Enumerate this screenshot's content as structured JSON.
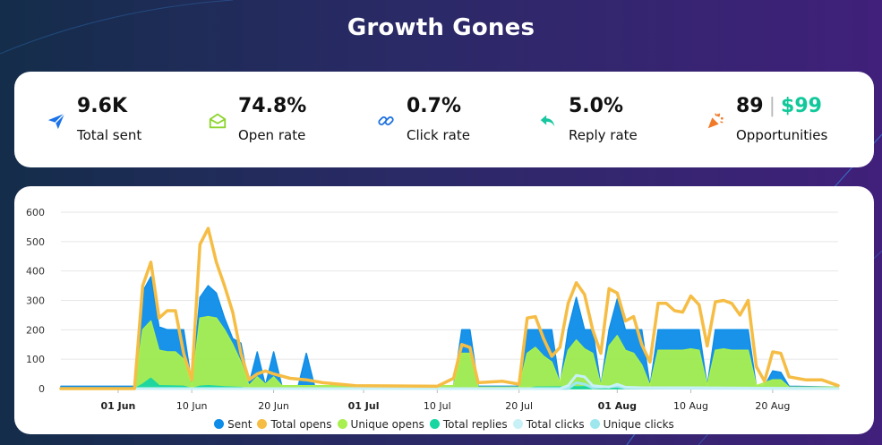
{
  "title": "Growth Gones",
  "stats": [
    {
      "icon": "paper-plane-icon",
      "value": "9.6K",
      "label": "Total sent",
      "color": "#1a73e8"
    },
    {
      "icon": "envelope-open-icon",
      "value": "74.8%",
      "label": "Open rate",
      "color": "#8cd42b"
    },
    {
      "icon": "link-icon",
      "value": "0.7%",
      "label": "Click rate",
      "color": "#1a6fe0"
    },
    {
      "icon": "reply-icon",
      "value": "5.0%",
      "label": "Reply rate",
      "color": "#18c6a0"
    },
    {
      "icon": "party-popper-icon",
      "value": "89",
      "separator": "|",
      "money": "$99",
      "label": "Opportunities",
      "color": "#f07a28"
    }
  ],
  "chart_data": {
    "type": "area",
    "title": "",
    "xlabel": "",
    "ylabel": "",
    "ylim": [
      0,
      600
    ],
    "yticks": [
      "0",
      "100",
      "200",
      "300",
      "400",
      "500",
      "600"
    ],
    "grid": true,
    "legend_position": "bottom",
    "x_start": "2024-05-25",
    "x_end": "2024-08-28",
    "xticks": [
      {
        "label": "01 Jun",
        "date": "2024-06-01",
        "bold": true
      },
      {
        "label": "10 Jun",
        "date": "2024-06-10",
        "bold": false
      },
      {
        "label": "20 Jun",
        "date": "2024-06-20",
        "bold": false
      },
      {
        "label": "01 Jul",
        "date": "2024-07-01",
        "bold": true
      },
      {
        "label": "10 Jul",
        "date": "2024-07-10",
        "bold": false
      },
      {
        "label": "20 Jul",
        "date": "2024-07-20",
        "bold": false
      },
      {
        "label": "01 Aug",
        "date": "2024-08-01",
        "bold": true
      },
      {
        "label": "10 Aug",
        "date": "2024-08-10",
        "bold": false
      },
      {
        "label": "20 Aug",
        "date": "2024-08-20",
        "bold": false
      }
    ],
    "series": [
      {
        "name": "Sent",
        "color": "#0d8de8",
        "kind": "area",
        "points": [
          [
            "2024-05-25",
            8
          ],
          [
            "2024-06-03",
            8
          ],
          [
            "2024-06-04",
            330
          ],
          [
            "2024-06-05",
            380
          ],
          [
            "2024-06-06",
            210
          ],
          [
            "2024-06-07",
            200
          ],
          [
            "2024-06-08",
            200
          ],
          [
            "2024-06-09",
            200
          ],
          [
            "2024-06-10",
            15
          ],
          [
            "2024-06-11",
            310
          ],
          [
            "2024-06-12",
            350
          ],
          [
            "2024-06-13",
            325
          ],
          [
            "2024-06-14",
            240
          ],
          [
            "2024-06-15",
            170
          ],
          [
            "2024-06-16",
            155
          ],
          [
            "2024-06-17",
            15
          ],
          [
            "2024-06-18",
            125
          ],
          [
            "2024-06-19",
            10
          ],
          [
            "2024-06-20",
            125
          ],
          [
            "2024-06-21",
            10
          ],
          [
            "2024-06-23",
            8
          ],
          [
            "2024-06-24",
            120
          ],
          [
            "2024-06-25",
            10
          ],
          [
            "2024-07-12",
            8
          ],
          [
            "2024-07-13",
            200
          ],
          [
            "2024-07-14",
            200
          ],
          [
            "2024-07-15",
            8
          ],
          [
            "2024-07-20",
            8
          ],
          [
            "2024-07-21",
            200
          ],
          [
            "2024-07-22",
            200
          ],
          [
            "2024-07-23",
            200
          ],
          [
            "2024-07-24",
            200
          ],
          [
            "2024-07-25",
            8
          ],
          [
            "2024-07-26",
            200
          ],
          [
            "2024-07-27",
            310
          ],
          [
            "2024-07-28",
            200
          ],
          [
            "2024-07-29",
            200
          ],
          [
            "2024-07-30",
            8
          ],
          [
            "2024-07-31",
            200
          ],
          [
            "2024-08-01",
            305
          ],
          [
            "2024-08-02",
            200
          ],
          [
            "2024-08-03",
            200
          ],
          [
            "2024-08-04",
            200
          ],
          [
            "2024-08-05",
            8
          ],
          [
            "2024-08-06",
            200
          ],
          [
            "2024-08-07",
            200
          ],
          [
            "2024-08-08",
            200
          ],
          [
            "2024-08-09",
            200
          ],
          [
            "2024-08-10",
            200
          ],
          [
            "2024-08-11",
            200
          ],
          [
            "2024-08-12",
            8
          ],
          [
            "2024-08-13",
            200
          ],
          [
            "2024-08-14",
            200
          ],
          [
            "2024-08-15",
            200
          ],
          [
            "2024-08-16",
            200
          ],
          [
            "2024-08-17",
            200
          ],
          [
            "2024-08-18",
            8
          ],
          [
            "2024-08-19",
            8
          ],
          [
            "2024-08-20",
            60
          ],
          [
            "2024-08-21",
            55
          ],
          [
            "2024-08-22",
            8
          ],
          [
            "2024-08-28",
            5
          ]
        ]
      },
      {
        "name": "Total opens",
        "color": "#f6bd45",
        "kind": "line",
        "points": [
          [
            "2024-05-25",
            0
          ],
          [
            "2024-06-03",
            0
          ],
          [
            "2024-06-04",
            350
          ],
          [
            "2024-06-05",
            430
          ],
          [
            "2024-06-06",
            240
          ],
          [
            "2024-06-07",
            265
          ],
          [
            "2024-06-08",
            265
          ],
          [
            "2024-06-09",
            120
          ],
          [
            "2024-06-10",
            30
          ],
          [
            "2024-06-11",
            490
          ],
          [
            "2024-06-12",
            545
          ],
          [
            "2024-06-13",
            430
          ],
          [
            "2024-06-14",
            350
          ],
          [
            "2024-06-15",
            260
          ],
          [
            "2024-06-16",
            120
          ],
          [
            "2024-06-17",
            30
          ],
          [
            "2024-06-18",
            50
          ],
          [
            "2024-06-19",
            60
          ],
          [
            "2024-06-20",
            50
          ],
          [
            "2024-06-22",
            35
          ],
          [
            "2024-06-24",
            30
          ],
          [
            "2024-06-26",
            20
          ],
          [
            "2024-06-30",
            10
          ],
          [
            "2024-07-10",
            8
          ],
          [
            "2024-07-12",
            35
          ],
          [
            "2024-07-13",
            150
          ],
          [
            "2024-07-14",
            140
          ],
          [
            "2024-07-15",
            20
          ],
          [
            "2024-07-18",
            25
          ],
          [
            "2024-07-20",
            15
          ],
          [
            "2024-07-21",
            240
          ],
          [
            "2024-07-22",
            245
          ],
          [
            "2024-07-23",
            170
          ],
          [
            "2024-07-24",
            110
          ],
          [
            "2024-07-25",
            140
          ],
          [
            "2024-07-26",
            290
          ],
          [
            "2024-07-27",
            360
          ],
          [
            "2024-07-28",
            320
          ],
          [
            "2024-07-29",
            200
          ],
          [
            "2024-07-30",
            120
          ],
          [
            "2024-07-31",
            340
          ],
          [
            "2024-08-01",
            325
          ],
          [
            "2024-08-02",
            230
          ],
          [
            "2024-08-03",
            245
          ],
          [
            "2024-08-04",
            150
          ],
          [
            "2024-08-05",
            90
          ],
          [
            "2024-08-06",
            290
          ],
          [
            "2024-08-07",
            290
          ],
          [
            "2024-08-08",
            265
          ],
          [
            "2024-08-09",
            260
          ],
          [
            "2024-08-10",
            315
          ],
          [
            "2024-08-11",
            285
          ],
          [
            "2024-08-12",
            145
          ],
          [
            "2024-08-13",
            295
          ],
          [
            "2024-08-14",
            300
          ],
          [
            "2024-08-15",
            290
          ],
          [
            "2024-08-16",
            250
          ],
          [
            "2024-08-17",
            300
          ],
          [
            "2024-08-18",
            75
          ],
          [
            "2024-08-19",
            25
          ],
          [
            "2024-08-20",
            125
          ],
          [
            "2024-08-21",
            120
          ],
          [
            "2024-08-22",
            40
          ],
          [
            "2024-08-24",
            30
          ],
          [
            "2024-08-26",
            30
          ],
          [
            "2024-08-28",
            10
          ]
        ]
      },
      {
        "name": "Unique opens",
        "color": "#a8ef4f",
        "kind": "area",
        "points": [
          [
            "2024-05-25",
            0
          ],
          [
            "2024-06-03",
            0
          ],
          [
            "2024-06-04",
            200
          ],
          [
            "2024-06-05",
            230
          ],
          [
            "2024-06-06",
            130
          ],
          [
            "2024-06-07",
            125
          ],
          [
            "2024-06-08",
            125
          ],
          [
            "2024-06-09",
            100
          ],
          [
            "2024-06-10",
            10
          ],
          [
            "2024-06-11",
            240
          ],
          [
            "2024-06-12",
            245
          ],
          [
            "2024-06-13",
            240
          ],
          [
            "2024-06-14",
            200
          ],
          [
            "2024-06-15",
            150
          ],
          [
            "2024-06-16",
            90
          ],
          [
            "2024-06-17",
            10
          ],
          [
            "2024-06-18",
            40
          ],
          [
            "2024-06-19",
            15
          ],
          [
            "2024-06-20",
            40
          ],
          [
            "2024-06-21",
            10
          ],
          [
            "2024-07-12",
            10
          ],
          [
            "2024-07-13",
            120
          ],
          [
            "2024-07-14",
            120
          ],
          [
            "2024-07-15",
            5
          ],
          [
            "2024-07-20",
            5
          ],
          [
            "2024-07-21",
            120
          ],
          [
            "2024-07-22",
            140
          ],
          [
            "2024-07-23",
            110
          ],
          [
            "2024-07-24",
            90
          ],
          [
            "2024-07-25",
            20
          ],
          [
            "2024-07-26",
            130
          ],
          [
            "2024-07-27",
            165
          ],
          [
            "2024-07-28",
            135
          ],
          [
            "2024-07-29",
            120
          ],
          [
            "2024-07-30",
            10
          ],
          [
            "2024-07-31",
            145
          ],
          [
            "2024-08-01",
            180
          ],
          [
            "2024-08-02",
            130
          ],
          [
            "2024-08-03",
            120
          ],
          [
            "2024-08-04",
            80
          ],
          [
            "2024-08-05",
            10
          ],
          [
            "2024-08-06",
            130
          ],
          [
            "2024-08-07",
            130
          ],
          [
            "2024-08-08",
            130
          ],
          [
            "2024-08-09",
            130
          ],
          [
            "2024-08-10",
            135
          ],
          [
            "2024-08-11",
            130
          ],
          [
            "2024-08-12",
            10
          ],
          [
            "2024-08-13",
            130
          ],
          [
            "2024-08-14",
            135
          ],
          [
            "2024-08-15",
            130
          ],
          [
            "2024-08-16",
            130
          ],
          [
            "2024-08-17",
            130
          ],
          [
            "2024-08-18",
            10
          ],
          [
            "2024-08-20",
            30
          ],
          [
            "2024-08-21",
            30
          ],
          [
            "2024-08-22",
            5
          ],
          [
            "2024-08-28",
            5
          ]
        ]
      },
      {
        "name": "Total replies",
        "color": "#18d6a2",
        "kind": "area",
        "points": [
          [
            "2024-05-25",
            0
          ],
          [
            "2024-06-03",
            0
          ],
          [
            "2024-06-04",
            15
          ],
          [
            "2024-06-05",
            35
          ],
          [
            "2024-06-06",
            10
          ],
          [
            "2024-06-09",
            8
          ],
          [
            "2024-06-10",
            0
          ],
          [
            "2024-06-11",
            8
          ],
          [
            "2024-06-12",
            10
          ],
          [
            "2024-06-14",
            6
          ],
          [
            "2024-06-16",
            4
          ],
          [
            "2024-06-17",
            0
          ],
          [
            "2024-07-21",
            0
          ],
          [
            "2024-07-22",
            5
          ],
          [
            "2024-07-28",
            6
          ],
          [
            "2024-08-01",
            5
          ],
          [
            "2024-08-06",
            4
          ],
          [
            "2024-08-10",
            4
          ],
          [
            "2024-08-15",
            4
          ],
          [
            "2024-08-20",
            3
          ],
          [
            "2024-08-28",
            0
          ]
        ]
      },
      {
        "name": "Total clicks",
        "color": "#c8f1f7",
        "kind": "line",
        "points": [
          [
            "2024-05-25",
            0
          ],
          [
            "2024-07-25",
            0
          ],
          [
            "2024-07-26",
            10
          ],
          [
            "2024-07-27",
            45
          ],
          [
            "2024-07-28",
            40
          ],
          [
            "2024-07-29",
            10
          ],
          [
            "2024-07-31",
            5
          ],
          [
            "2024-08-01",
            15
          ],
          [
            "2024-08-02",
            5
          ],
          [
            "2024-08-04",
            3
          ],
          [
            "2024-08-10",
            3
          ],
          [
            "2024-08-28",
            0
          ]
        ]
      },
      {
        "name": "Unique clicks",
        "color": "#9ee7ee",
        "kind": "line",
        "points": [
          [
            "2024-05-25",
            0
          ],
          [
            "2024-07-26",
            0
          ],
          [
            "2024-07-27",
            20
          ],
          [
            "2024-07-28",
            15
          ],
          [
            "2024-07-29",
            3
          ],
          [
            "2024-08-01",
            8
          ],
          [
            "2024-08-02",
            2
          ],
          [
            "2024-08-28",
            0
          ]
        ]
      }
    ]
  }
}
